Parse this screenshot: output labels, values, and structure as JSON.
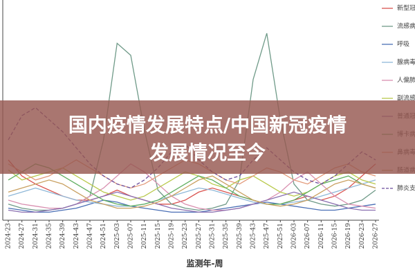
{
  "chart_data": {
    "type": "line",
    "x_label": "监测年-周",
    "categories": [
      "2024-23",
      "2024-27",
      "2024-31",
      "2024-35",
      "2024-39",
      "2024-43",
      "2024-47",
      "2024-51",
      "2025-03",
      "2025-07",
      "2025-11",
      "2025-15",
      "2025-19",
      "2025-23",
      "2025-27",
      "2025-31",
      "2025-35",
      "2025-39",
      "2025-43",
      "2025-47",
      "2025-51",
      "2026-03",
      "2026-07",
      "2026-11",
      "2026-15",
      "2026-19",
      "2026-23",
      "2026-27"
    ],
    "series": [
      {
        "name": "新型冠",
        "color": "#d9534f",
        "values": [
          30,
          22,
          18,
          15,
          12,
          10,
          10,
          12,
          15,
          12,
          10,
          8,
          8,
          10,
          14,
          16,
          14,
          12,
          10,
          8,
          8,
          10,
          12,
          10,
          12,
          16,
          22,
          28
        ]
      },
      {
        "name": "流感病",
        "color": "#6f9a88",
        "values": [
          8,
          6,
          5,
          5,
          6,
          8,
          12,
          40,
          88,
          82,
          45,
          15,
          8,
          6,
          5,
          6,
          8,
          20,
          70,
          93,
          50,
          18,
          10,
          8,
          7,
          8,
          10,
          15
        ]
      },
      {
        "name": "呼吸",
        "color": "#4a6fb5",
        "values": [
          6,
          5,
          4,
          4,
          5,
          6,
          8,
          10,
          9,
          7,
          6,
          5,
          4,
          4,
          4,
          5,
          6,
          7,
          8,
          9,
          8,
          7,
          6,
          5,
          5,
          6,
          7,
          8
        ]
      },
      {
        "name": "腺病毒",
        "color": "#8fb8d8",
        "values": [
          12,
          14,
          16,
          14,
          12,
          10,
          9,
          8,
          7,
          7,
          8,
          10,
          12,
          14,
          16,
          15,
          13,
          11,
          9,
          8,
          8,
          9,
          10,
          12,
          14,
          16,
          18,
          20
        ]
      },
      {
        "name": "人偏肺",
        "color": "#d98fb0",
        "values": [
          10,
          8,
          7,
          6,
          6,
          8,
          12,
          16,
          22,
          28,
          24,
          18,
          12,
          8,
          6,
          5,
          5,
          6,
          8,
          10,
          14,
          20,
          24,
          18,
          12,
          8,
          7,
          6
        ]
      },
      {
        "name": "副流感",
        "color": "#b8c94a",
        "values": [
          25,
          20,
          22,
          24,
          26,
          22,
          18,
          14,
          12,
          10,
          12,
          16,
          20,
          24,
          22,
          18,
          16,
          20,
          22,
          18,
          14,
          12,
          14,
          18,
          22,
          24,
          20,
          18
        ]
      },
      {
        "name": "普通冠",
        "color": "#8a6fb0",
        "values": [
          5,
          4,
          4,
          5,
          6,
          8,
          10,
          12,
          14,
          12,
          10,
          8,
          6,
          5,
          4,
          4,
          5,
          6,
          8,
          10,
          12,
          14,
          12,
          10,
          8,
          6,
          5,
          5
        ]
      },
      {
        "name": "博卡病",
        "color": "#5fae5f",
        "values": [
          20,
          24,
          28,
          26,
          22,
          18,
          14,
          10,
          8,
          7,
          8,
          10,
          14,
          18,
          22,
          20,
          16,
          12,
          10,
          8,
          8,
          10,
          14,
          18,
          20,
          22,
          18,
          16
        ]
      },
      {
        "name": "鼻病毒",
        "color": "#e39a7a",
        "values": [
          28,
          24,
          20,
          22,
          26,
          30,
          26,
          22,
          18,
          16,
          18,
          22,
          26,
          30,
          28,
          24,
          20,
          18,
          22,
          26,
          24,
          20,
          18,
          22,
          26,
          28,
          24,
          22
        ]
      },
      {
        "name": "肠道病",
        "color": "#c9a060",
        "values": [
          14,
          16,
          18,
          20,
          18,
          14,
          10,
          8,
          6,
          6,
          7,
          9,
          12,
          16,
          20,
          22,
          18,
          14,
          10,
          8,
          7,
          8,
          10,
          14,
          18,
          20,
          18,
          16
        ]
      },
      {
        "name": "肺炎支",
        "color": "#6a4c9c",
        "dashed": true,
        "values": [
          40,
          52,
          56,
          50,
          44,
          36,
          28,
          22,
          18,
          16,
          20,
          26,
          34,
          38,
          30,
          24,
          20,
          22,
          30,
          36,
          30,
          24,
          20,
          18,
          22,
          28,
          34,
          30
        ]
      }
    ]
  },
  "banner": {
    "lines": [
      "国内疫情发展特点/中国新冠疫情",
      "发展情况至今"
    ]
  }
}
